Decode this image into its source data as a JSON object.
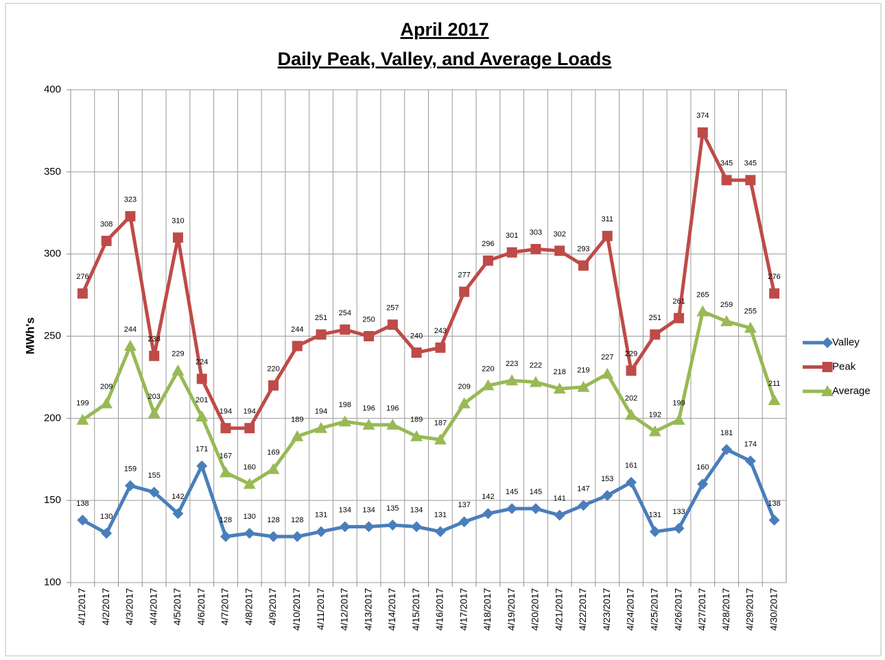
{
  "chart_data": {
    "type": "line",
    "title": "April 2017",
    "subtitle": "Daily Peak, Valley, and Average Loads",
    "y_label": "MWh's",
    "categories": [
      "4/1/2017",
      "4/2/2017",
      "4/3/2017",
      "4/4/2017",
      "4/5/2017",
      "4/6/2017",
      "4/7/2017",
      "4/8/2017",
      "4/9/2017",
      "4/10/2017",
      "4/11/2017",
      "4/12/2017",
      "4/13/2017",
      "4/14/2017",
      "4/15/2017",
      "4/16/2017",
      "4/17/2017",
      "4/18/2017",
      "4/19/2017",
      "4/20/2017",
      "4/21/2017",
      "4/22/2017",
      "4/23/2017",
      "4/24/2017",
      "4/25/2017",
      "4/26/2017",
      "4/27/2017",
      "4/28/2017",
      "4/29/2017",
      "4/30/2017"
    ],
    "series": [
      {
        "name": "Valley",
        "color": "#4a7ebb",
        "marker": "diamond",
        "values": [
          138,
          130,
          159,
          155,
          142,
          171,
          128,
          130,
          128,
          128,
          131,
          134,
          134,
          135,
          134,
          131,
          137,
          142,
          145,
          145,
          141,
          147,
          153,
          161,
          131,
          133,
          160,
          181,
          174,
          138
        ]
      },
      {
        "name": "Peak",
        "color": "#be4b48",
        "marker": "square",
        "values": [
          276,
          308,
          323,
          238,
          310,
          224,
          194,
          194,
          220,
          244,
          251,
          254,
          250,
          257,
          240,
          243,
          277,
          296,
          301,
          303,
          302,
          293,
          311,
          229,
          251,
          261,
          374,
          345,
          345,
          276
        ]
      },
      {
        "name": "Average",
        "color": "#98b954",
        "marker": "triangle",
        "values": [
          199,
          209,
          244,
          203,
          229,
          201,
          167,
          160,
          169,
          189,
          194,
          198,
          196,
          196,
          189,
          187,
          209,
          220,
          223,
          222,
          218,
          219,
          227,
          202,
          192,
          199,
          265,
          259,
          255,
          211
        ]
      }
    ],
    "ylim": [
      100,
      400
    ],
    "yticks": [
      100,
      150,
      200,
      250,
      300,
      350,
      400
    ],
    "grid": true,
    "legend": "right",
    "data_labels": true
  }
}
